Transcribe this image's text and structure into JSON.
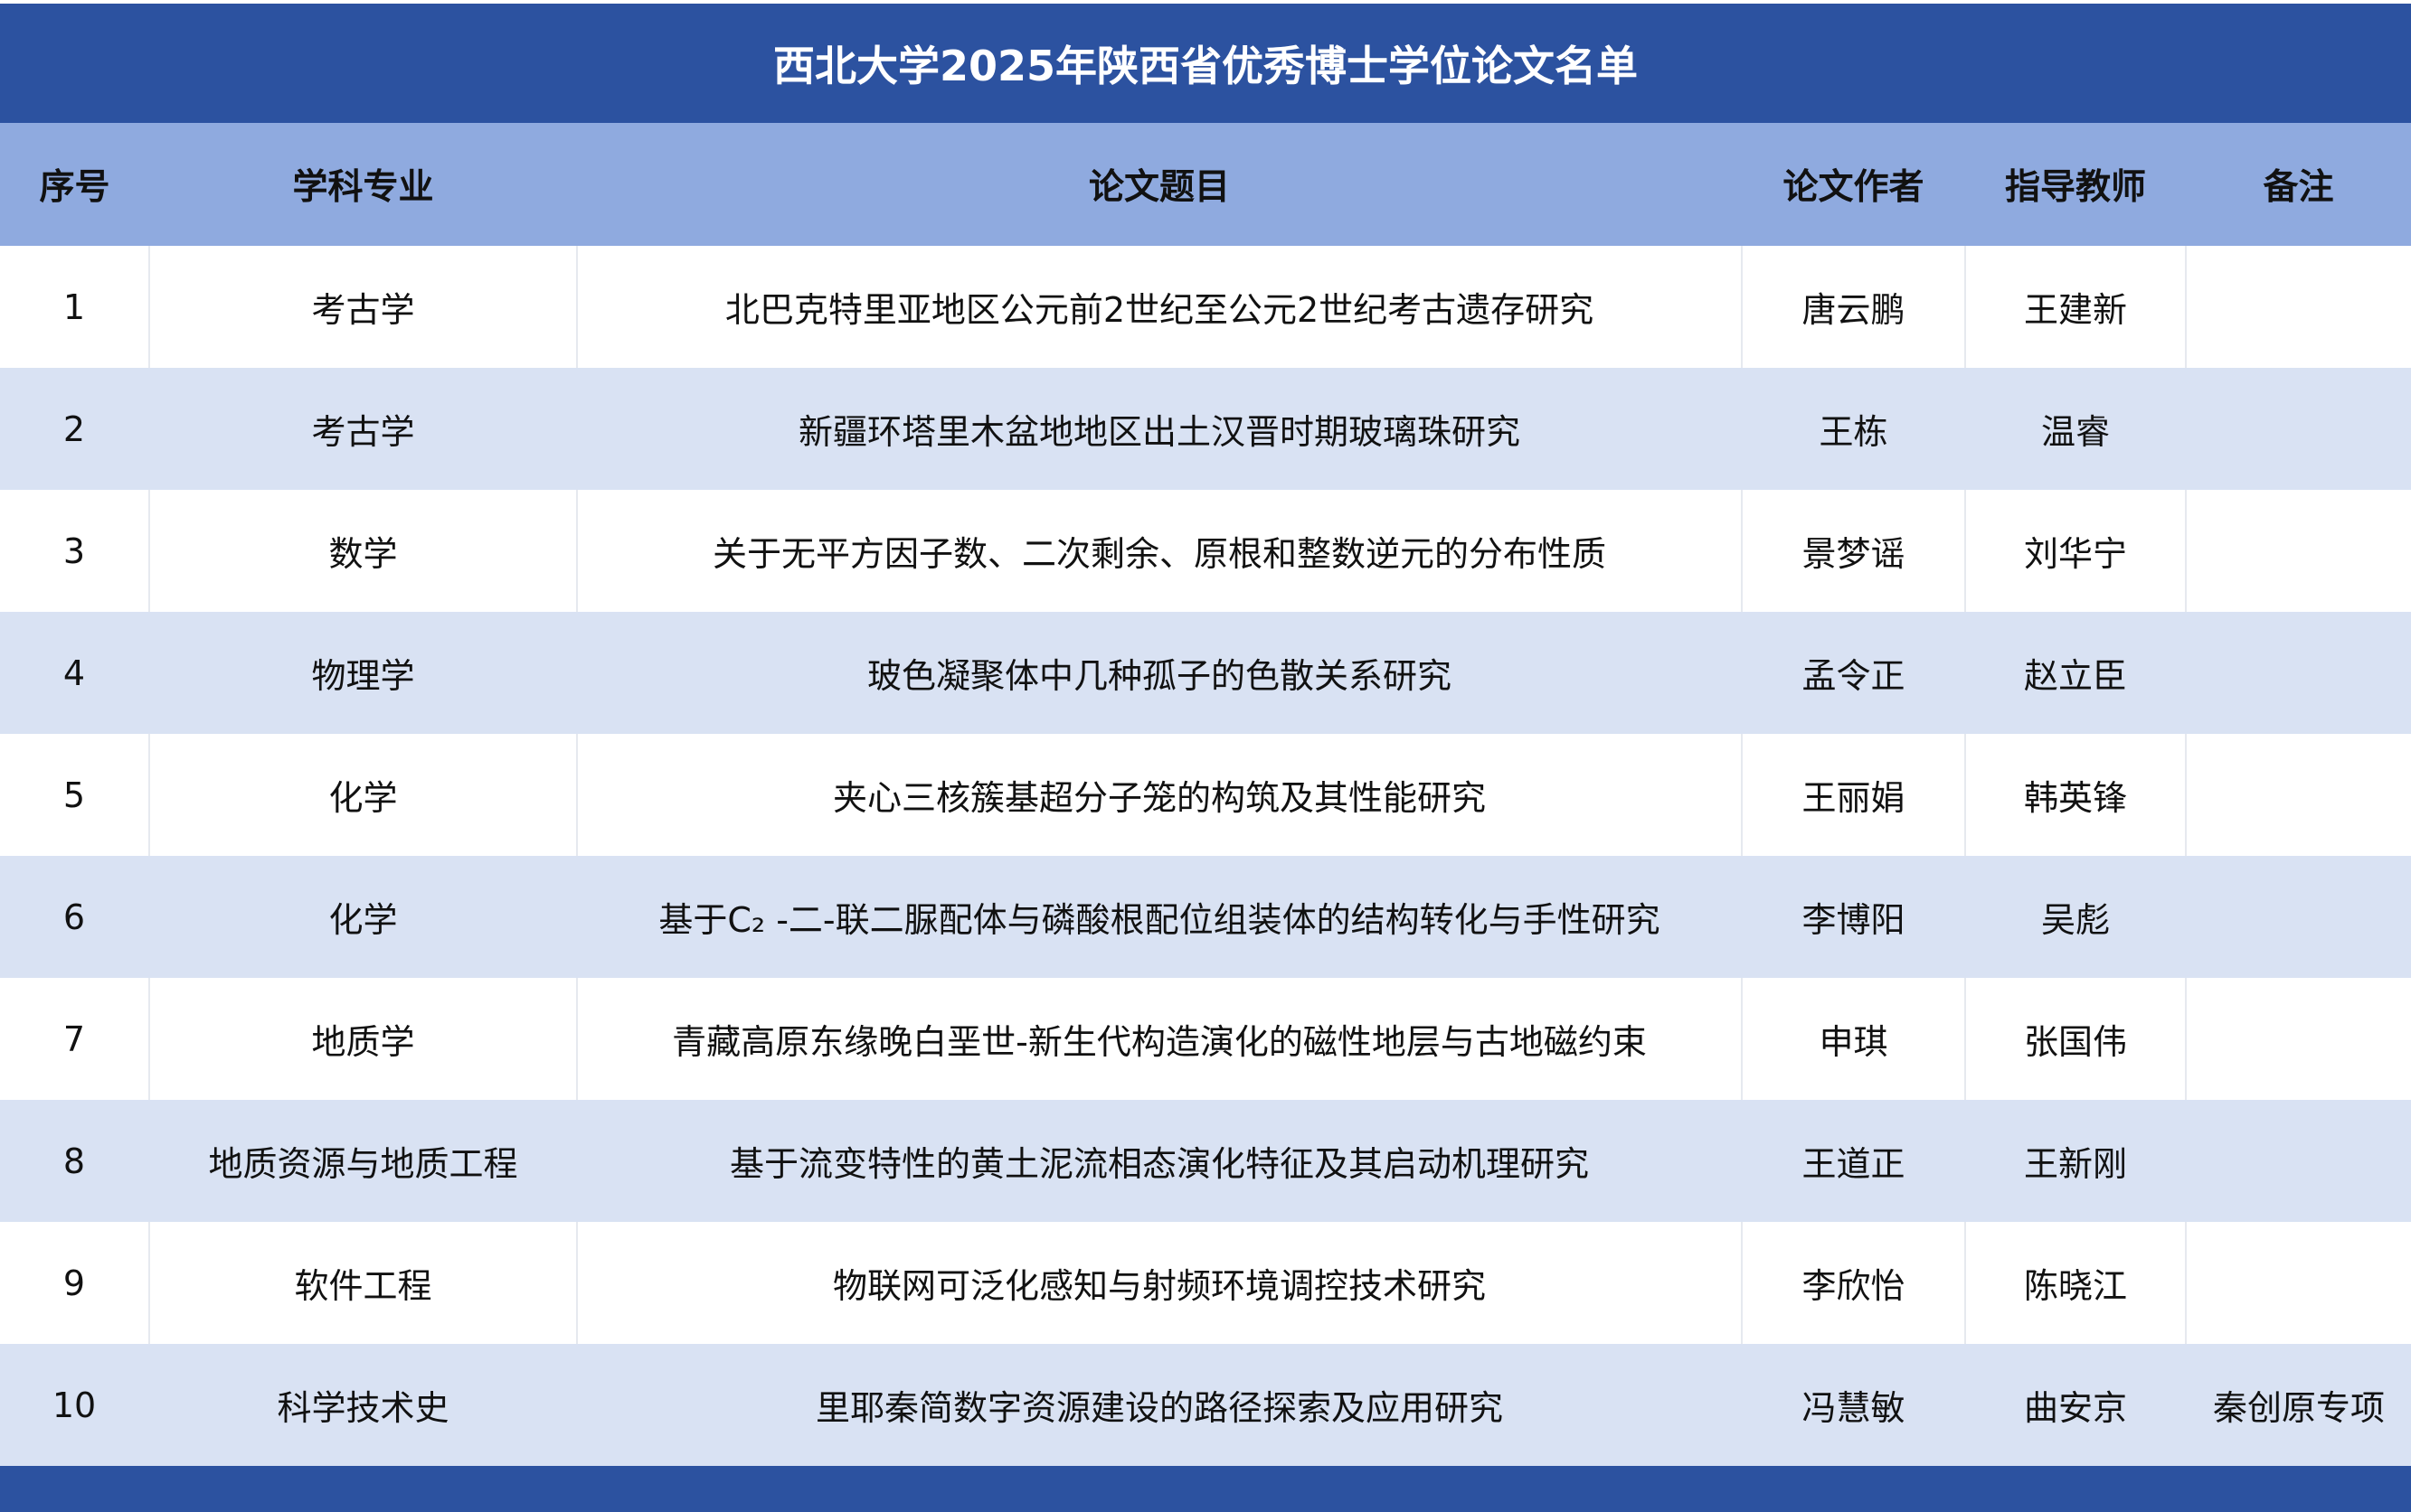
{
  "title": "西北大学2025年陕西省优秀博士学位论文名单",
  "colors": {
    "title_bg": "#2c52a0",
    "header_bg": "#8faadf",
    "alt_row_bg": "#d9e2f3"
  },
  "headers": [
    "序号",
    "学科专业",
    "论文题目",
    "论文作者",
    "指导教师",
    "备注"
  ],
  "rows": [
    [
      "1",
      "考古学",
      "北巴克特里亚地区公元前2世纪至公元2世纪考古遗存研究",
      "唐云鹏",
      "王建新",
      ""
    ],
    [
      "2",
      "考古学",
      "新疆环塔里木盆地地区出土汉晋时期玻璃珠研究",
      "王栋",
      "温睿",
      ""
    ],
    [
      "3",
      "数学",
      "关于无平方因子数、二次剩余、原根和整数逆元的分布性质",
      "景梦谣",
      "刘华宁",
      ""
    ],
    [
      "4",
      "物理学",
      "玻色凝聚体中几种孤子的色散关系研究",
      "孟令正",
      "赵立臣",
      ""
    ],
    [
      "5",
      "化学",
      "夹心三核簇基超分子笼的构筑及其性能研究",
      "王丽娟",
      "韩英锋",
      ""
    ],
    [
      "6",
      "化学",
      "基于C₂ -二-联二脲配体与磷酸根配位组装体的结构转化与手性研究",
      "李博阳",
      "吴彪",
      ""
    ],
    [
      "7",
      "地质学",
      "青藏高原东缘晚白垩世-新生代构造演化的磁性地层与古地磁约束",
      "申琪",
      "张国伟",
      ""
    ],
    [
      "8",
      "地质资源与地质工程",
      "基于流变特性的黄土泥流相态演化特征及其启动机理研究",
      "王道正",
      "王新刚",
      ""
    ],
    [
      "9",
      "软件工程",
      "物联网可泛化感知与射频环境调控技术研究",
      "李欣怡",
      "陈晓江",
      ""
    ],
    [
      "10",
      "科学技术史",
      "里耶秦简数字资源建设的路径探索及应用研究",
      "冯慧敏",
      "曲安京",
      "秦创原专项"
    ]
  ]
}
